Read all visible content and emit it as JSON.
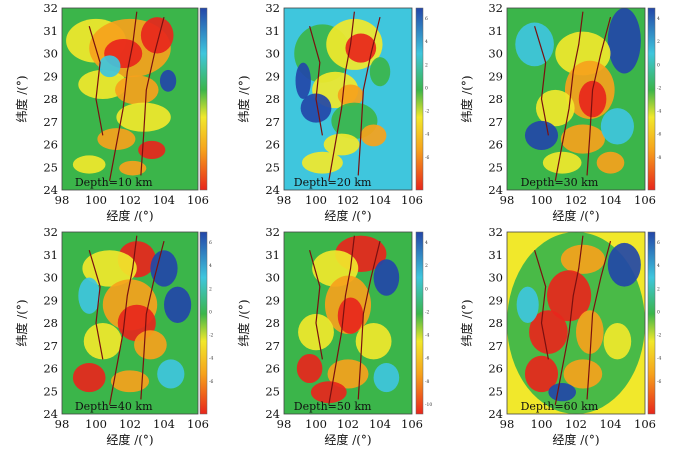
{
  "figure": {
    "x_label": "经度 /(°)",
    "y_label": "纬度 /(°)",
    "x_ticks": [
      "98",
      "100",
      "102",
      "104",
      "106"
    ],
    "y_ticks": [
      "24",
      "25",
      "26",
      "27",
      "28",
      "29",
      "30",
      "31",
      "32"
    ],
    "lon_range": [
      98,
      106
    ],
    "lat_range": [
      24,
      32
    ],
    "colors": {
      "red": "#e8261c",
      "orange": "#f6a21c",
      "yellow": "#f1e82b",
      "green": "#3bb54a",
      "cyan": "#3fc6dd",
      "blue": "#2346a8",
      "fault": "#7a1010"
    }
  },
  "panels": [
    {
      "label": "Depth=10 km",
      "colorbar_ticks": [
        "",
        "",
        "",
        "",
        "",
        "",
        "",
        ""
      ]
    },
    {
      "label": "Depth=20 km",
      "colorbar_ticks": [
        "6",
        "4",
        "2",
        "0",
        "-2",
        "-4",
        "-6",
        ""
      ]
    },
    {
      "label": "Depth=30 km",
      "colorbar_ticks": [
        "4",
        "2",
        "0",
        "-2",
        "-4",
        "-6",
        "-8",
        ""
      ]
    },
    {
      "label": "Depth=40 km",
      "colorbar_ticks": [
        "6",
        "4",
        "2",
        "0",
        "-2",
        "-4",
        "-6",
        ""
      ]
    },
    {
      "label": "Depth=50 km",
      "colorbar_ticks": [
        "4",
        "2",
        "0",
        "-2",
        "-4",
        "-6",
        "-8",
        "-10"
      ]
    },
    {
      "label": "Depth=60 km",
      "colorbar_ticks": [
        "6",
        "4",
        "2",
        "0",
        "-2",
        "-4",
        "-6",
        ""
      ]
    }
  ]
}
